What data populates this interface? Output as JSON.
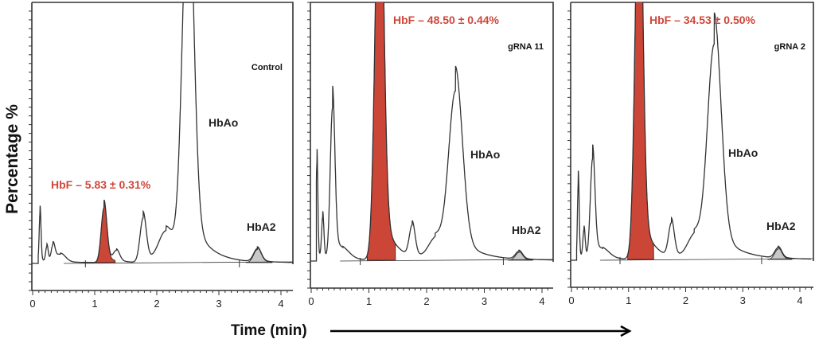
{
  "chart_data": [
    {
      "type": "line",
      "sample_label": "Control",
      "hbf_annotation": "HbF – 5.83 ± 0.31%",
      "peak_labels": {
        "hbao": "HbAo",
        "hba2": "HbA2"
      },
      "x_ticks": [
        "0",
        "1",
        "2",
        "3",
        "4"
      ],
      "xlim": [
        0,
        4.2
      ],
      "ylim": [
        0,
        100
      ],
      "peaks": [
        {
          "time": 0.12,
          "height": 19,
          "width": 0.015
        },
        {
          "time": 0.23,
          "height": 6,
          "width": 0.02
        },
        {
          "time": 0.33,
          "height": 6,
          "width": 0.03
        },
        {
          "time": 0.45,
          "height": 3,
          "width": 0.08
        },
        {
          "time": 1.15,
          "height": 21,
          "width": 0.045,
          "name": "HbF",
          "fill": "#cc4637"
        },
        {
          "time": 1.35,
          "height": 4,
          "width": 0.05
        },
        {
          "time": 1.78,
          "height": 17,
          "width": 0.05
        },
        {
          "time": 2.15,
          "height": 12,
          "width": 0.12
        },
        {
          "time": 2.5,
          "height": 140,
          "width": 0.09,
          "name": "HbAo"
        },
        {
          "time": 3.62,
          "height": 5,
          "width": 0.06,
          "name": "HbA2",
          "fill": "#c8c8c8"
        }
      ]
    },
    {
      "type": "line",
      "sample_label": "gRNA 11",
      "hbf_annotation": "HbF – 48.50 ± 0.44%",
      "peak_labels": {
        "hbao": "HbAo",
        "hba2": "HbA2"
      },
      "x_ticks": [
        "0",
        "1",
        "2",
        "3",
        "4"
      ],
      "xlim": [
        0,
        4.2
      ],
      "ylim": [
        0,
        100
      ],
      "peaks": [
        {
          "time": 0.1,
          "height": 38,
          "width": 0.015
        },
        {
          "time": 0.2,
          "height": 16,
          "width": 0.02
        },
        {
          "time": 0.37,
          "height": 58,
          "width": 0.04
        },
        {
          "time": 0.55,
          "height": 3,
          "width": 0.12
        },
        {
          "time": 1.18,
          "height": 160,
          "width": 0.07,
          "name": "HbF",
          "fill": "#cc4637"
        },
        {
          "time": 1.75,
          "height": 12,
          "width": 0.05
        },
        {
          "time": 2.15,
          "height": 8,
          "width": 0.12
        },
        {
          "time": 2.5,
          "height": 65,
          "width": 0.12,
          "name": "HbAo"
        },
        {
          "time": 3.6,
          "height": 3,
          "width": 0.06,
          "name": "HbA2",
          "fill": "#c8c8c8"
        }
      ]
    },
    {
      "type": "line",
      "sample_label": "gRNA 2",
      "hbf_annotation": "HbF – 34.53 ± 0.50%",
      "peak_labels": {
        "hbao": "HbAo",
        "hba2": "HbA2"
      },
      "x_ticks": [
        "0",
        "1",
        "2",
        "3",
        "4"
      ],
      "xlim": [
        0,
        4.2
      ],
      "ylim": [
        0,
        100
      ],
      "peaks": [
        {
          "time": 0.12,
          "height": 30,
          "width": 0.015
        },
        {
          "time": 0.22,
          "height": 11,
          "width": 0.02
        },
        {
          "time": 0.37,
          "height": 38,
          "width": 0.04
        },
        {
          "time": 0.55,
          "height": 3,
          "width": 0.12
        },
        {
          "time": 1.18,
          "height": 150,
          "width": 0.065,
          "name": "HbF",
          "fill": "#cc4637"
        },
        {
          "time": 1.75,
          "height": 13,
          "width": 0.05
        },
        {
          "time": 2.15,
          "height": 9,
          "width": 0.12
        },
        {
          "time": 2.5,
          "height": 83,
          "width": 0.12,
          "name": "HbAo"
        },
        {
          "time": 3.62,
          "height": 4,
          "width": 0.06,
          "name": "HbA2",
          "fill": "#c8c8c8"
        }
      ]
    }
  ],
  "ylabel": "Percentage %",
  "xlabel": "Time (min)"
}
